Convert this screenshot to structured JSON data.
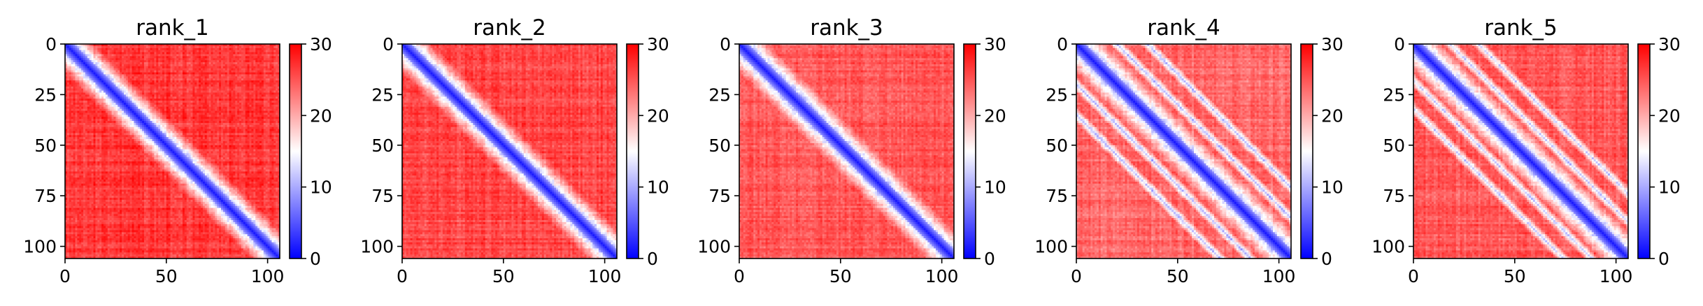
{
  "chart_data": [
    {
      "type": "heatmap",
      "title": "rank_1",
      "matrix_size": 106,
      "xticks": [
        0,
        50,
        100
      ],
      "yticks": [
        0,
        25,
        50,
        75,
        100
      ],
      "colorbar": {
        "min": 0,
        "max": 30,
        "ticks": [
          0,
          10,
          20,
          30
        ]
      },
      "colormap": [
        "#0000ff",
        "#ffffff",
        "#ff0000"
      ],
      "pattern": {
        "diagonal_band_width": 4.5,
        "background_level": 29,
        "off_diagonal_lines": []
      }
    },
    {
      "type": "heatmap",
      "title": "rank_2",
      "matrix_size": 106,
      "xticks": [
        0,
        50,
        100
      ],
      "yticks": [
        0,
        25,
        50,
        75,
        100
      ],
      "colorbar": {
        "min": 0,
        "max": 30,
        "ticks": [
          0,
          10,
          20,
          30
        ]
      },
      "colormap": [
        "#0000ff",
        "#ffffff",
        "#ff0000"
      ],
      "pattern": {
        "diagonal_band_width": 4.5,
        "background_level": 28,
        "off_diagonal_lines": []
      }
    },
    {
      "type": "heatmap",
      "title": "rank_3",
      "matrix_size": 106,
      "xticks": [
        0,
        50,
        100
      ],
      "yticks": [
        0,
        25,
        50,
        75,
        100
      ],
      "colorbar": {
        "min": 0,
        "max": 30,
        "ticks": [
          0,
          10,
          20,
          30
        ]
      },
      "colormap": [
        "#0000ff",
        "#ffffff",
        "#ff0000"
      ],
      "pattern": {
        "diagonal_band_width": 4.5,
        "background_level": 27,
        "off_diagonal_lines": []
      }
    },
    {
      "type": "heatmap",
      "title": "rank_4",
      "matrix_size": 106,
      "xticks": [
        0,
        50,
        100
      ],
      "yticks": [
        0,
        25,
        50,
        75,
        100
      ],
      "colorbar": {
        "min": 0,
        "max": 30,
        "ticks": [
          0,
          10,
          20,
          30
        ]
      },
      "colormap": [
        "#0000ff",
        "#ffffff",
        "#ff0000"
      ],
      "pattern": {
        "diagonal_band_width": 4.5,
        "background_level": 26,
        "off_diagonal_lines": [
          20,
          35
        ]
      }
    },
    {
      "type": "heatmap",
      "title": "rank_5",
      "matrix_size": 106,
      "xticks": [
        0,
        50,
        100
      ],
      "yticks": [
        0,
        25,
        50,
        75,
        100
      ],
      "colorbar": {
        "min": 0,
        "max": 30,
        "ticks": [
          0,
          10,
          20,
          30
        ]
      },
      "colormap": [
        "#0000ff",
        "#ffffff",
        "#ff0000"
      ],
      "pattern": {
        "diagonal_band_width": 4.5,
        "background_level": 27,
        "off_diagonal_lines": [
          18,
          32
        ]
      }
    }
  ]
}
